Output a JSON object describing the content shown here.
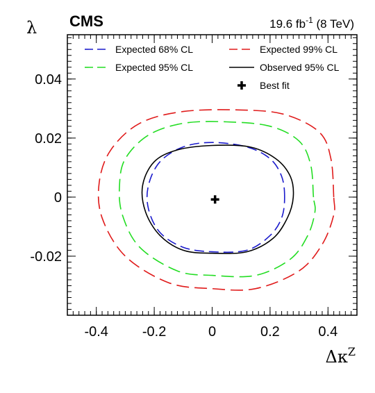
{
  "header": {
    "experiment": "CMS",
    "lumi_value": "19.6 fb",
    "lumi_exponent": "-1",
    "lumi_energy": " (8 TeV)"
  },
  "chart_data": {
    "type": "contour",
    "xlabel_base": "Δκ",
    "xlabel_sup": "Z",
    "ylabel": "λ",
    "xlim": [
      -0.5,
      0.5
    ],
    "ylim": [
      -0.04,
      0.055
    ],
    "grid": false,
    "legend_placement": "top",
    "x_ticks": [
      -0.4,
      -0.2,
      0,
      0.2,
      0.4
    ],
    "x_tick_labels": [
      "-0.4",
      "-0.2",
      "0",
      "0.2",
      "0.4"
    ],
    "y_ticks": [
      -0.02,
      0,
      0.02,
      0.04
    ],
    "y_tick_labels": [
      "-0.02",
      "0",
      "0.02",
      "0.04"
    ],
    "best_fit": {
      "x": 0.01,
      "y": -0.0008
    },
    "legend": [
      {
        "label": "Expected 68% CL",
        "color": "#1a1acc",
        "style": "dashed"
      },
      {
        "label": "Expected 99% CL",
        "color": "#e01a1a",
        "style": "dashed"
      },
      {
        "label": "Expected 95% CL",
        "color": "#22dd22",
        "style": "dashed"
      },
      {
        "label": "Observed 95% CL",
        "color": "#000000",
        "style": "solid"
      },
      {
        "label": "Best fit",
        "color": "#000000",
        "style": "marker"
      }
    ],
    "series": [
      {
        "name": "Expected 99% CL",
        "color": "#e01a1a",
        "style": "dashed",
        "points": [
          [
            0.42,
            0
          ],
          [
            0.41,
            0.013
          ],
          [
            0.37,
            0.022
          ],
          [
            0.25,
            0.028
          ],
          [
            0.1,
            0.0295
          ],
          [
            -0.1,
            0.029
          ],
          [
            -0.25,
            0.025
          ],
          [
            -0.35,
            0.016
          ],
          [
            -0.39,
            0.005
          ],
          [
            -0.38,
            -0.007
          ],
          [
            -0.3,
            -0.02
          ],
          [
            -0.15,
            -0.029
          ],
          [
            0,
            -0.031
          ],
          [
            0.15,
            -0.031
          ],
          [
            0.3,
            -0.025
          ],
          [
            0.38,
            -0.016
          ],
          [
            0.42,
            -0.006
          ],
          [
            0.42,
            0
          ]
        ]
      },
      {
        "name": "Expected 95% CL",
        "color": "#22dd22",
        "style": "dashed",
        "points": [
          [
            0.35,
            0
          ],
          [
            0.34,
            0.011
          ],
          [
            0.3,
            0.019
          ],
          [
            0.2,
            0.024
          ],
          [
            0.05,
            0.0255
          ],
          [
            -0.1,
            0.025
          ],
          [
            -0.22,
            0.021
          ],
          [
            -0.3,
            0.013
          ],
          [
            -0.32,
            0.004
          ],
          [
            -0.31,
            -0.006
          ],
          [
            -0.25,
            -0.017
          ],
          [
            -0.12,
            -0.025
          ],
          [
            0,
            -0.0265
          ],
          [
            0.15,
            -0.0265
          ],
          [
            0.27,
            -0.021
          ],
          [
            0.33,
            -0.013
          ],
          [
            0.355,
            -0.005
          ],
          [
            0.35,
            0
          ]
        ]
      },
      {
        "name": "Expected 68% CL",
        "color": "#1a1acc",
        "style": "dashed",
        "points": [
          [
            0.25,
            0
          ],
          [
            0.24,
            0.007
          ],
          [
            0.2,
            0.013
          ],
          [
            0.12,
            0.017
          ],
          [
            0,
            0.0185
          ],
          [
            -0.1,
            0.017
          ],
          [
            -0.18,
            0.012
          ],
          [
            -0.22,
            0.004
          ],
          [
            -0.22,
            -0.004
          ],
          [
            -0.18,
            -0.012
          ],
          [
            -0.1,
            -0.017
          ],
          [
            0,
            -0.0185
          ],
          [
            0.12,
            -0.018
          ],
          [
            0.2,
            -0.013
          ],
          [
            0.24,
            -0.007
          ],
          [
            0.25,
            0
          ]
        ]
      },
      {
        "name": "Observed 95% CL",
        "color": "#000000",
        "style": "solid",
        "points": [
          [
            0.28,
            0
          ],
          [
            0.27,
            0.007
          ],
          [
            0.22,
            0.013
          ],
          [
            0.13,
            0.017
          ],
          [
            0,
            0.0175
          ],
          [
            -0.12,
            0.016
          ],
          [
            -0.2,
            0.012
          ],
          [
            -0.24,
            0.004
          ],
          [
            -0.23,
            -0.005
          ],
          [
            -0.18,
            -0.013
          ],
          [
            -0.1,
            -0.018
          ],
          [
            0,
            -0.019
          ],
          [
            0.12,
            -0.0185
          ],
          [
            0.21,
            -0.014
          ],
          [
            0.26,
            -0.007
          ],
          [
            0.28,
            0
          ]
        ]
      }
    ]
  }
}
